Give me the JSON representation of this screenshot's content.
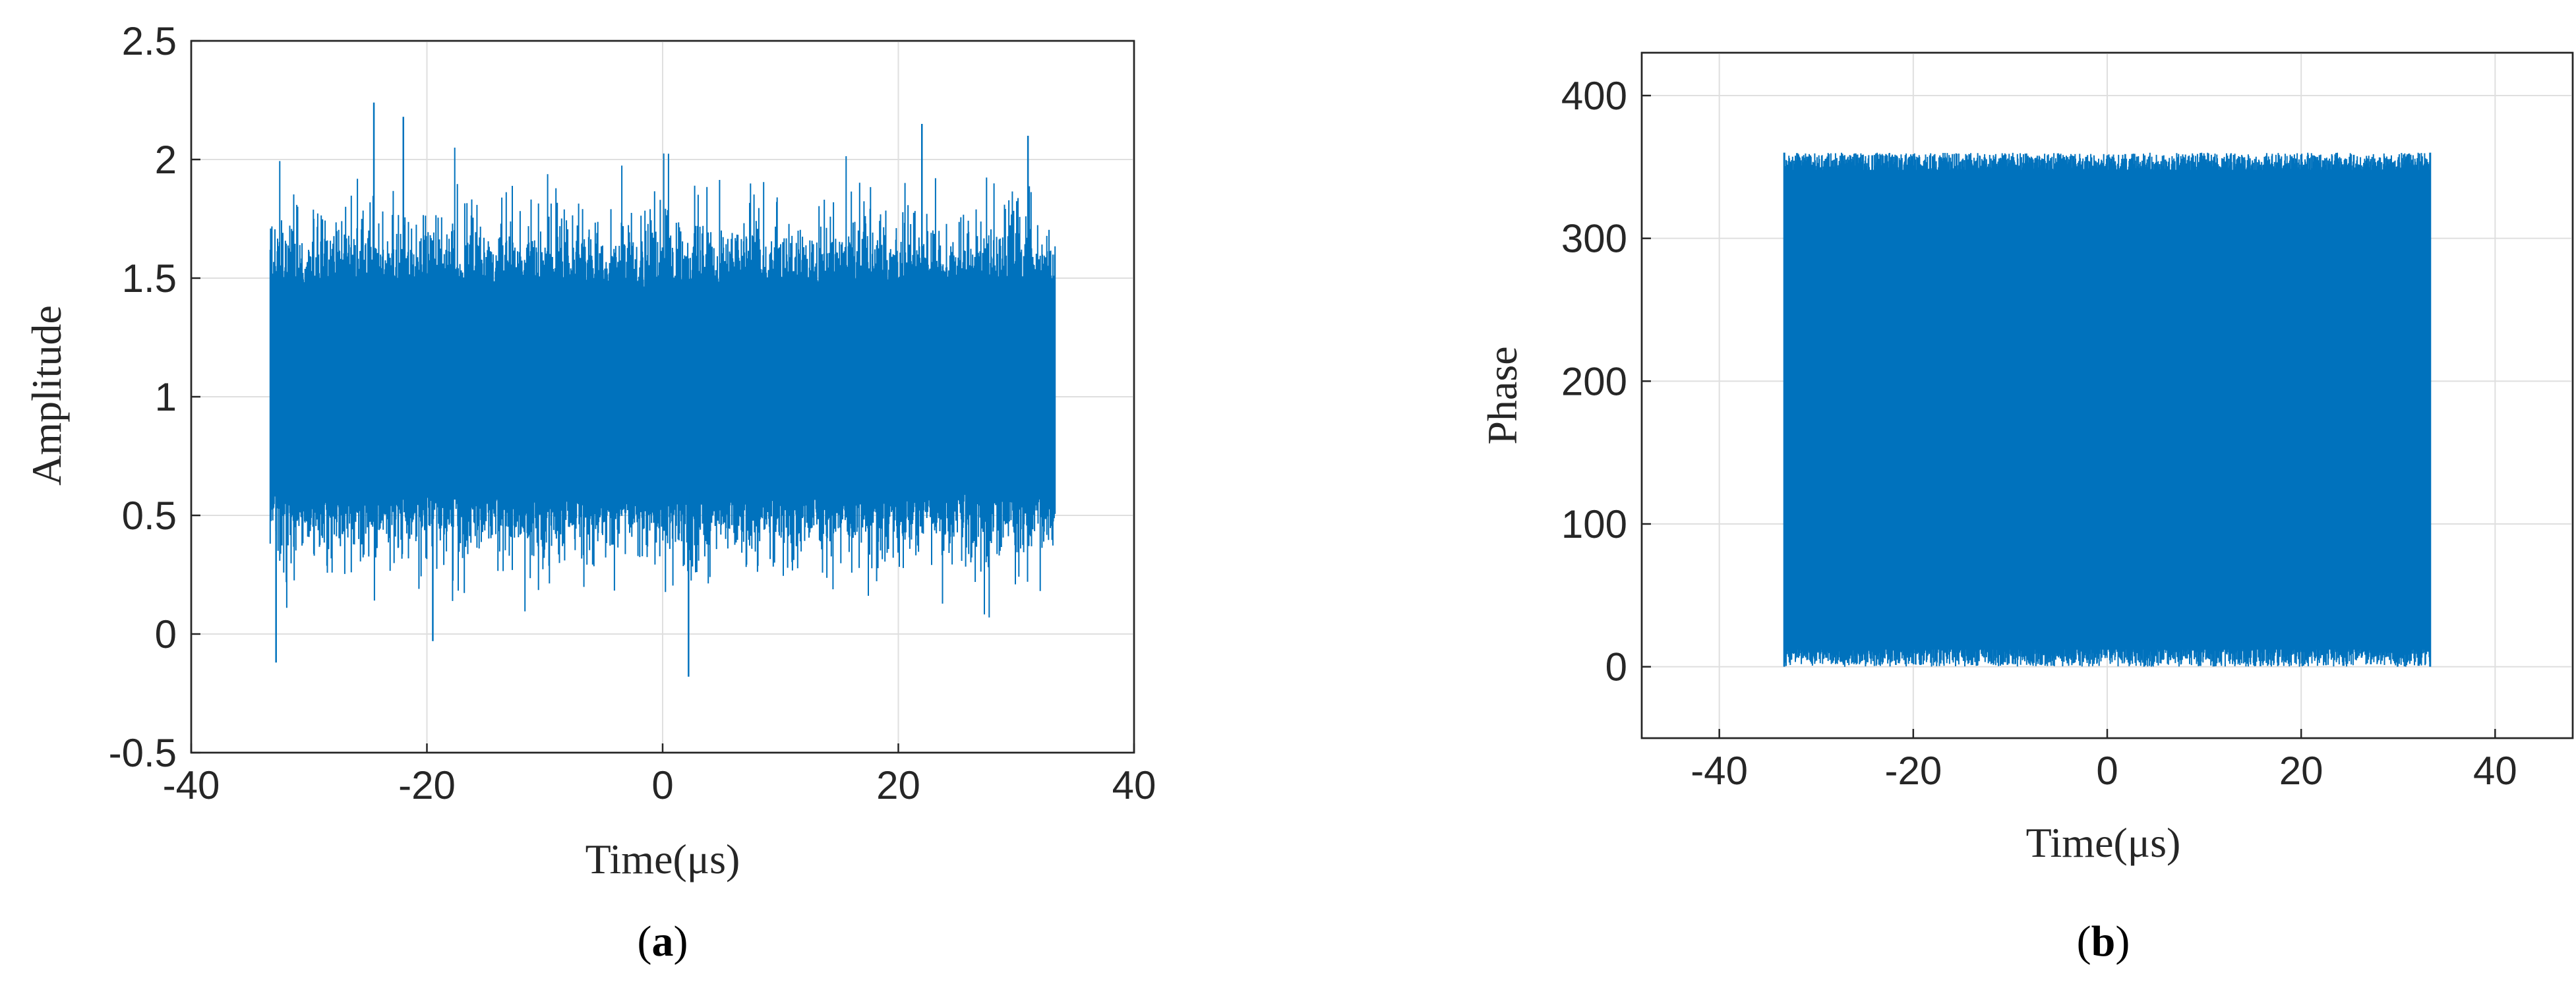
{
  "colors": {
    "series": "#0072bd",
    "grid": "#dfdfdf",
    "axis": "#262626"
  },
  "chart_data": [
    {
      "type": "line",
      "caption_open": "(",
      "caption_letter": "a",
      "caption_close": ")",
      "xlabel": "Time(μs)",
      "ylabel": "Amplitude",
      "xlim": [
        -40,
        40
      ],
      "ylim": [
        -0.5,
        2.5
      ],
      "xticks": [
        -40,
        -20,
        0,
        20,
        40
      ],
      "yticks": [
        -0.5,
        0,
        0.5,
        1,
        1.5,
        2,
        2.5
      ],
      "xtick_labels": [
        "-40",
        "-20",
        "0",
        "20",
        "40"
      ],
      "ytick_labels": [
        "-0.5",
        "0",
        "0.5",
        "1",
        "1.5",
        "2",
        "2.5"
      ],
      "grid": true,
      "series": [
        {
          "x_range": [
            -33.3,
            33.3
          ],
          "mean": 1.0,
          "dense_band": [
            0.6,
            1.45
          ],
          "envelope": [
            0.25,
            1.75
          ],
          "extremes": [
            {
              "x": -32.8,
              "y": -0.12
            },
            {
              "x": -24.5,
              "y": 2.24
            },
            {
              "x": -22.0,
              "y": 2.18
            },
            {
              "x": -19.5,
              "y": -0.03
            },
            {
              "x": 2.2,
              "y": -0.18
            },
            {
              "x": 22.0,
              "y": 2.15
            },
            {
              "x": 31.0,
              "y": 2.1
            }
          ]
        }
      ]
    },
    {
      "type": "line",
      "caption_open": "(",
      "caption_letter": "b",
      "caption_close": ")",
      "xlabel": "Time(μs)",
      "ylabel": "Phase",
      "xlim": [
        -48,
        48
      ],
      "ylim": [
        -50,
        430
      ],
      "xticks": [
        -40,
        -20,
        0,
        20,
        40
      ],
      "yticks": [
        0,
        100,
        200,
        300,
        400
      ],
      "xtick_labels": [
        "-40",
        "-20",
        "0",
        "20",
        "40"
      ],
      "ytick_labels": [
        "0",
        "100",
        "200",
        "300",
        "400"
      ],
      "grid": true,
      "series": [
        {
          "x_range": [
            -33.3,
            33.3
          ],
          "y_range": [
            0,
            360
          ],
          "note_values": "phase wraps uniformly between 0 and 360"
        }
      ]
    }
  ]
}
